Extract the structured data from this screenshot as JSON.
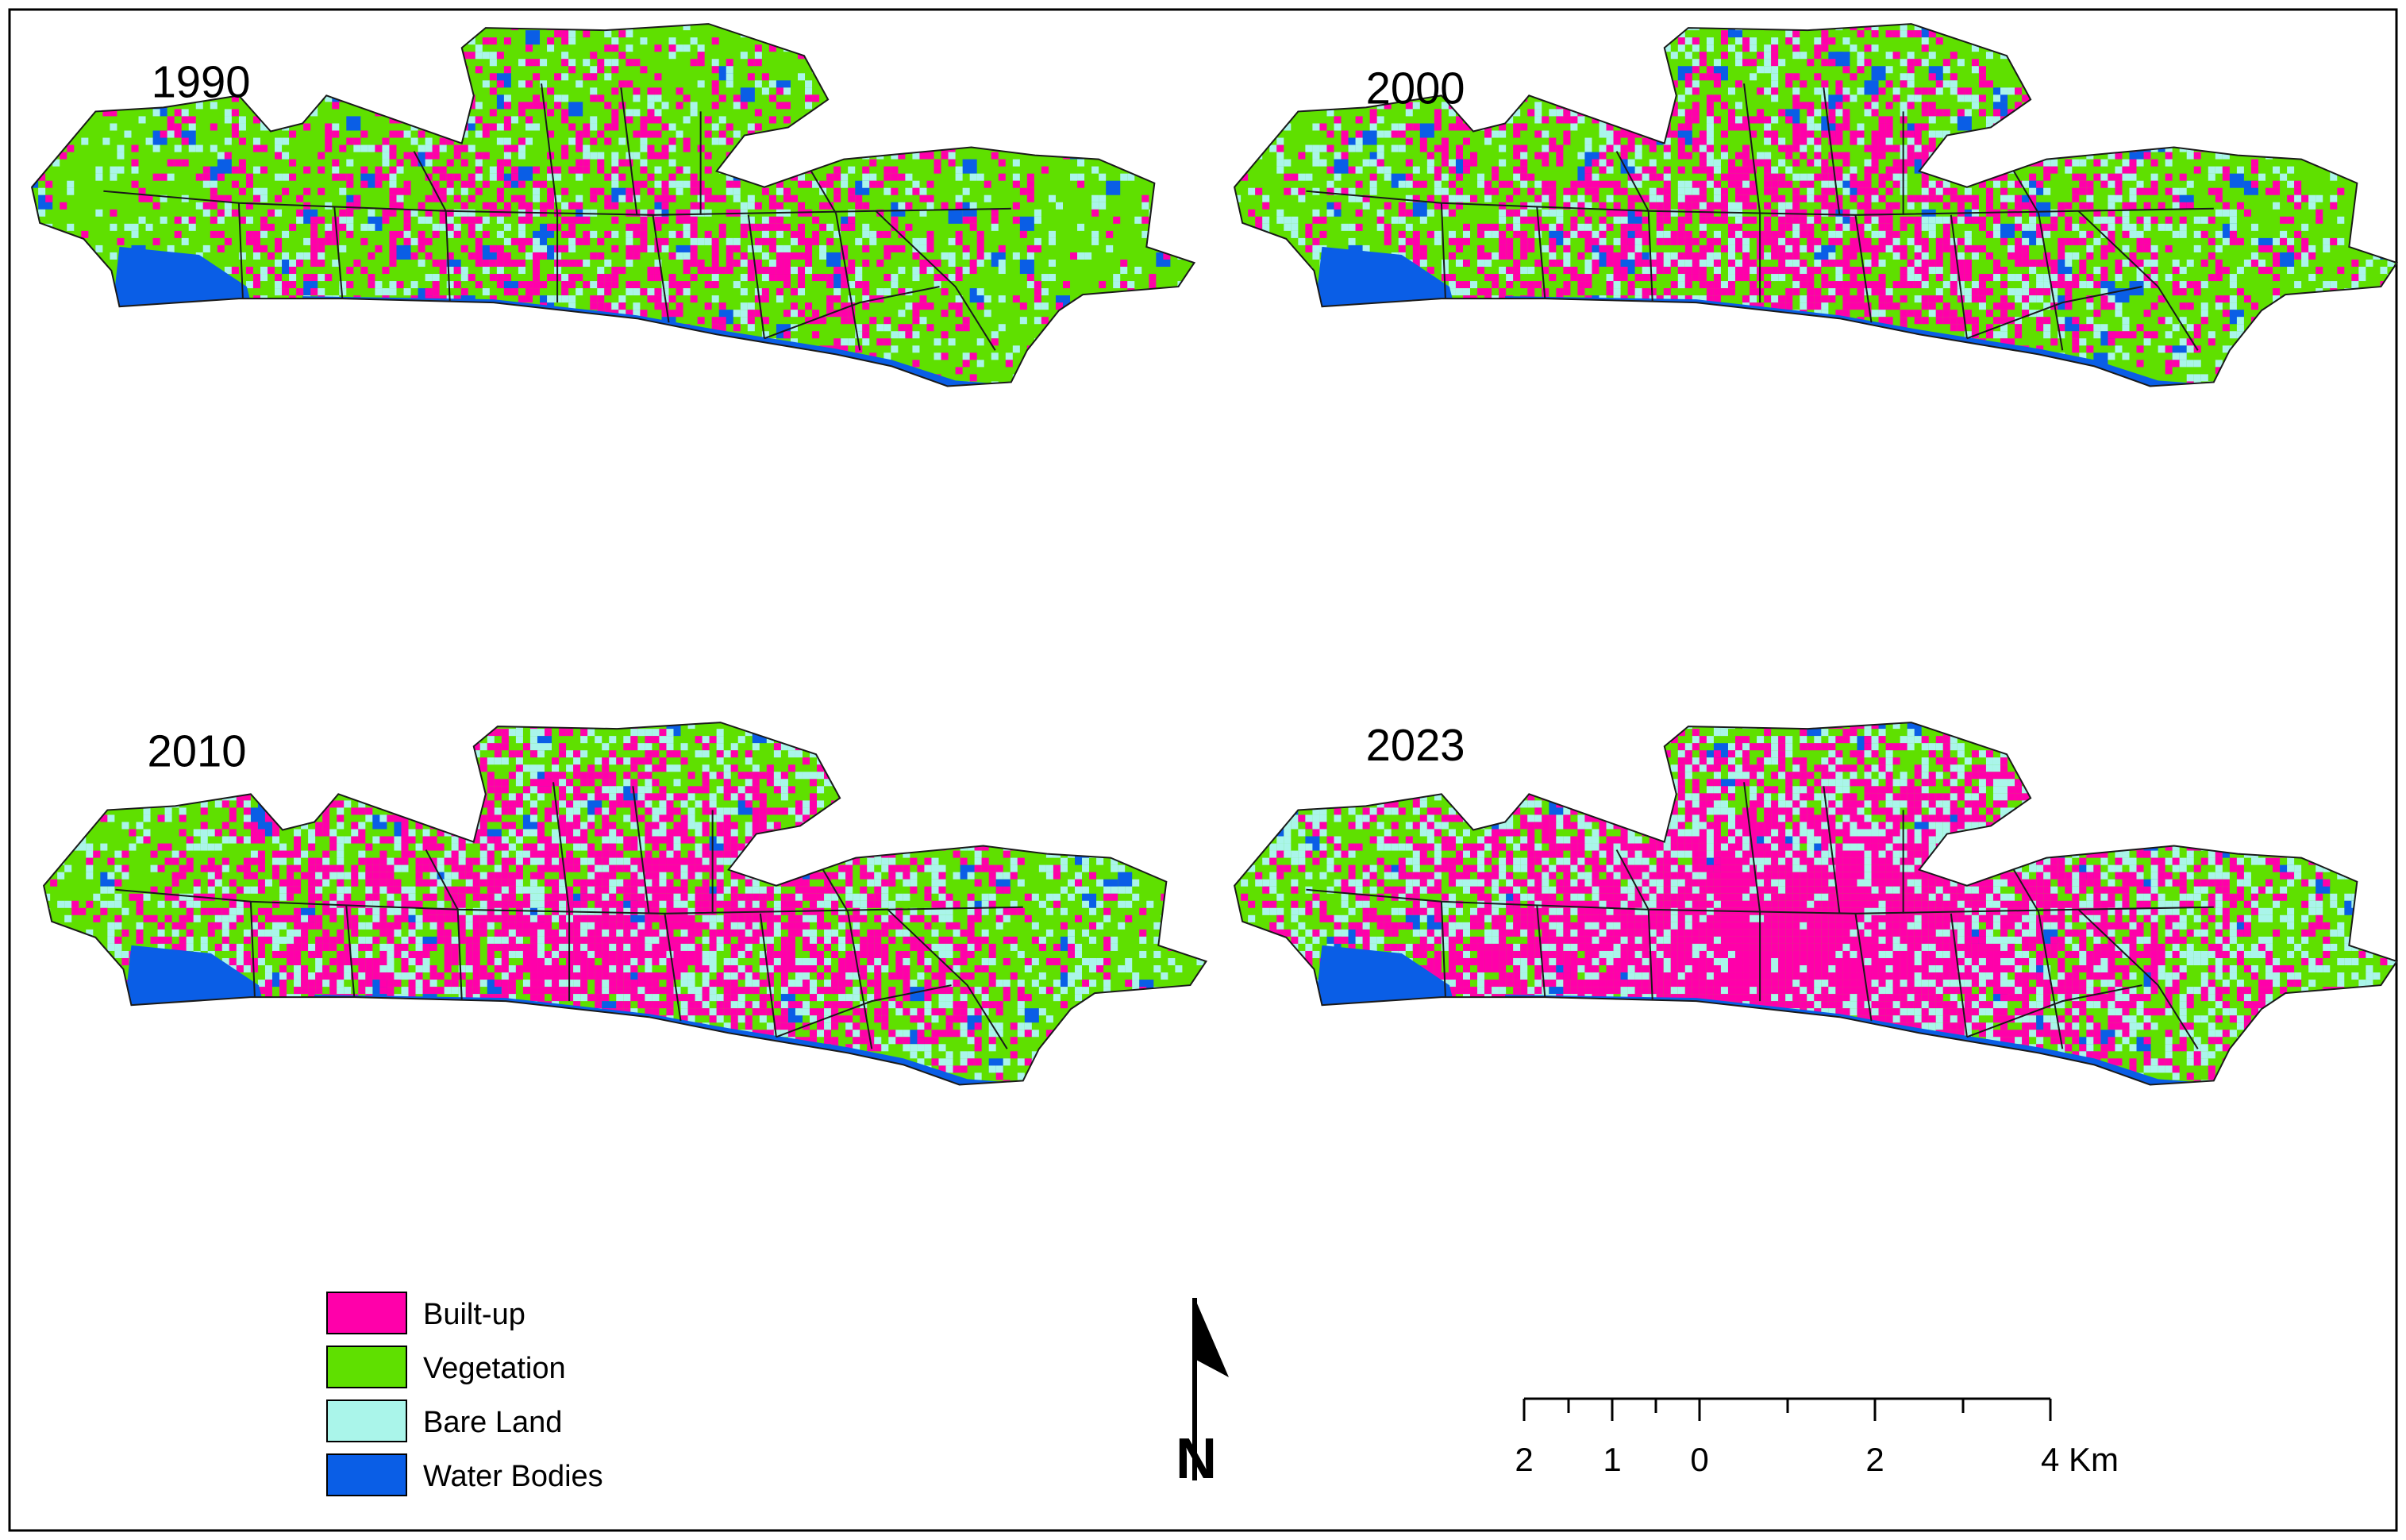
{
  "panels": [
    {
      "year": "1990",
      "builtup_share": 0.3
    },
    {
      "year": "2000",
      "builtup_share": 0.4
    },
    {
      "year": "2010",
      "builtup_share": 0.53
    },
    {
      "year": "2023",
      "builtup_share": 0.68
    }
  ],
  "legend": [
    {
      "label": "Built-up",
      "color": "#ff00aa"
    },
    {
      "label": "Vegetation",
      "color": "#5fe000"
    },
    {
      "label": "Bare Land",
      "color": "#aaf5ea"
    },
    {
      "label": "Water Bodies",
      "color": "#0a5ee6"
    }
  ],
  "north_arrow": {
    "label": "N"
  },
  "scale_bar": {
    "tick_labels": [
      "2",
      "1",
      "0",
      "2",
      "4 Km"
    ]
  }
}
